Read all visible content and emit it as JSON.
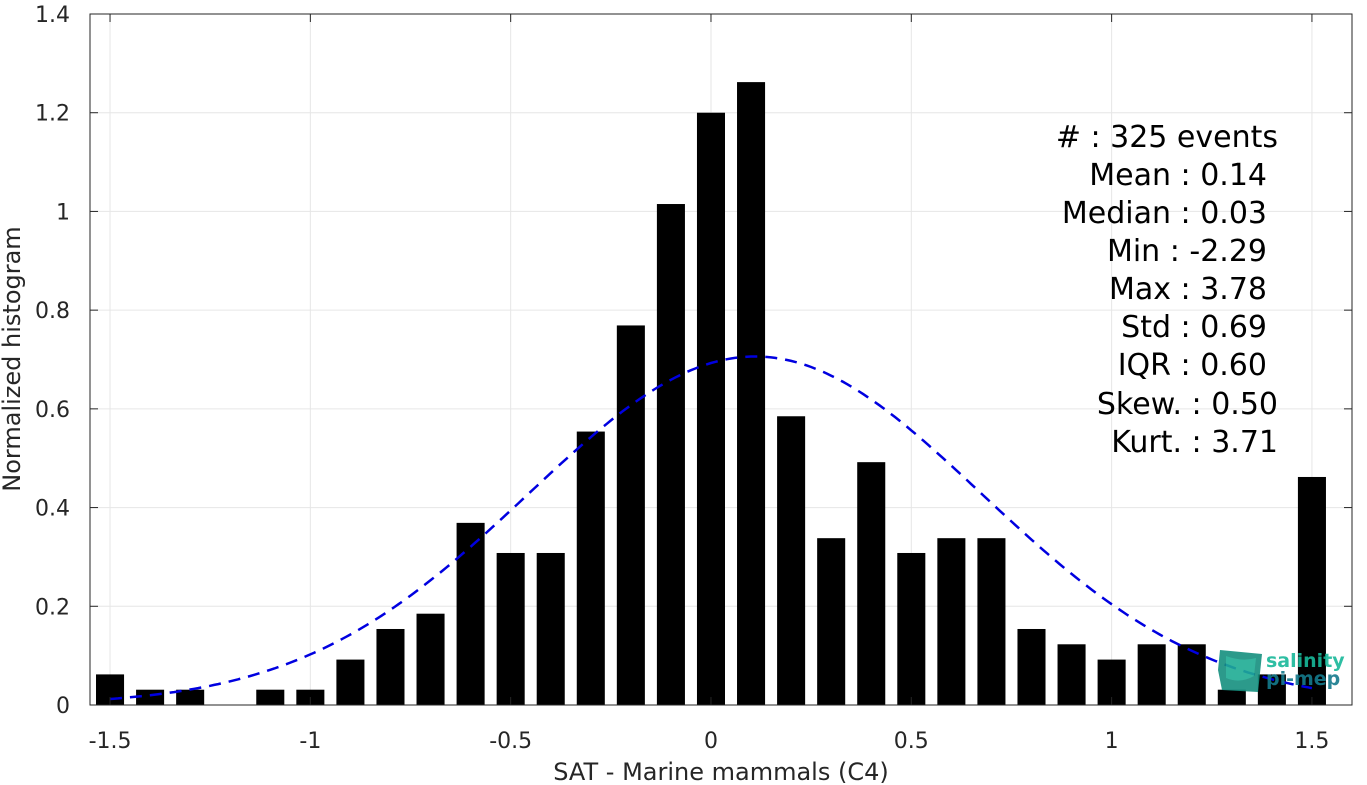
{
  "chart_data": {
    "type": "bar",
    "xlabel": "SAT - Marine mammals (C4)",
    "ylabel": "Normalized histogram",
    "xlim": [
      -1.55,
      1.6
    ],
    "ylim": [
      0,
      1.4
    ],
    "grid": true,
    "x_ticks": [
      "-1.5",
      "-1",
      "-0.5",
      "0",
      "0.5",
      "1",
      "1.5"
    ],
    "y_ticks": [
      "0",
      "0.2",
      "0.4",
      "0.6",
      "0.8",
      "1",
      "1.2",
      "1.4"
    ],
    "x_tick_values": [
      -1.5,
      -1,
      -0.5,
      0,
      0.5,
      1,
      1.5
    ],
    "y_tick_values": [
      0,
      0.2,
      0.4,
      0.6,
      0.8,
      1,
      1.2,
      1.4
    ],
    "bins": [
      -1.5,
      -1.4,
      -1.3,
      -1.2,
      -1.1,
      -1.0,
      -0.9,
      -0.8,
      -0.7,
      -0.6,
      -0.5,
      -0.4,
      -0.3,
      -0.2,
      -0.1,
      0.0,
      0.1,
      0.2,
      0.3,
      0.4,
      0.5,
      0.6,
      0.7,
      0.8,
      0.9,
      1.0,
      1.1,
      1.2,
      1.3,
      1.4,
      1.5
    ],
    "values": [
      0.062,
      0.031,
      0.031,
      0,
      0.031,
      0.031,
      0.092,
      0.154,
      0.185,
      0.369,
      0.308,
      0.308,
      0.554,
      0.769,
      1.015,
      1.2,
      1.262,
      0.585,
      0.338,
      0.492,
      0.308,
      0.338,
      0.338,
      0.154,
      0.123,
      0.092,
      0.123,
      0.123,
      0.031,
      0.062,
      0.462
    ],
    "bar_color": "#000000",
    "fit": {
      "type": "normal",
      "mean": 0.11,
      "std": 0.565,
      "color": "#0000e0",
      "style": "dashed"
    },
    "stats": [
      {
        "label": "#  : 325 events"
      },
      {
        "label": "Mean : 0.14"
      },
      {
        "label": "Median : 0.03"
      },
      {
        "label": "Min : -2.29"
      },
      {
        "label": "Max : 3.78"
      },
      {
        "label": "Std : 0.69"
      },
      {
        "label": "IQR : 0.60"
      },
      {
        "label": "Skew. : 0.50"
      },
      {
        "label": "Kurt. : 3.71"
      }
    ]
  },
  "logo": {
    "line1": "salinity",
    "line2": "pi-mep",
    "color": "#18b89a"
  }
}
